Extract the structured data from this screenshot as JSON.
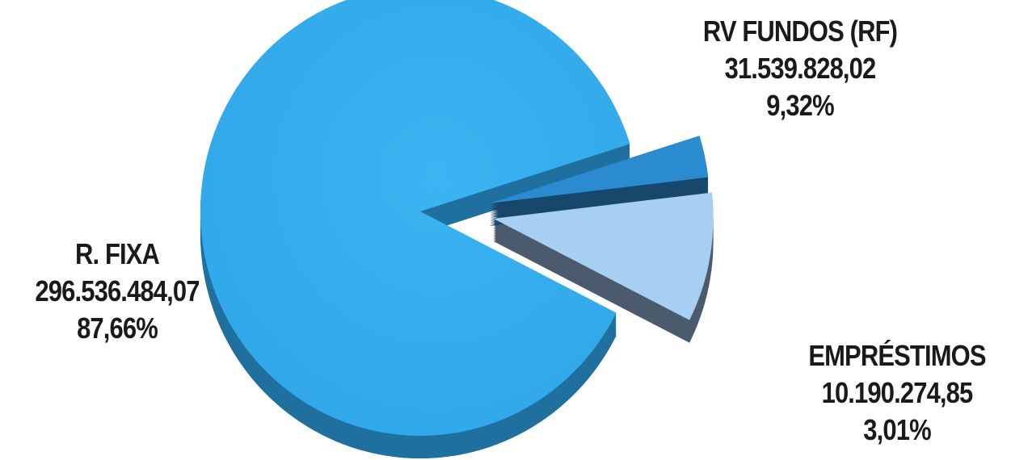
{
  "chart_data": {
    "type": "pie",
    "style": "3d-exploded",
    "slices": [
      {
        "name": "R. FIXA",
        "value_text": "296.536.484,07",
        "value": 296536484.07,
        "percent_text": "87,66%",
        "percent": 87.66,
        "color": "#35adee",
        "side_color": "#1f6f9f"
      },
      {
        "name": "RV FUNDOS (RF)",
        "value_text": "31.539.828,02",
        "value": 31539828.02,
        "percent_text": "9,32%",
        "percent": 9.32,
        "color": "#a6cff2",
        "side_color": "#4b5b6d"
      },
      {
        "name": "EMPRÉSTIMOS",
        "value_text": "10.190.274,85",
        "value": 10190274.85,
        "percent_text": "3,01%",
        "percent": 3.01,
        "color": "#2b8bd1",
        "side_color": "#17476a"
      }
    ]
  }
}
